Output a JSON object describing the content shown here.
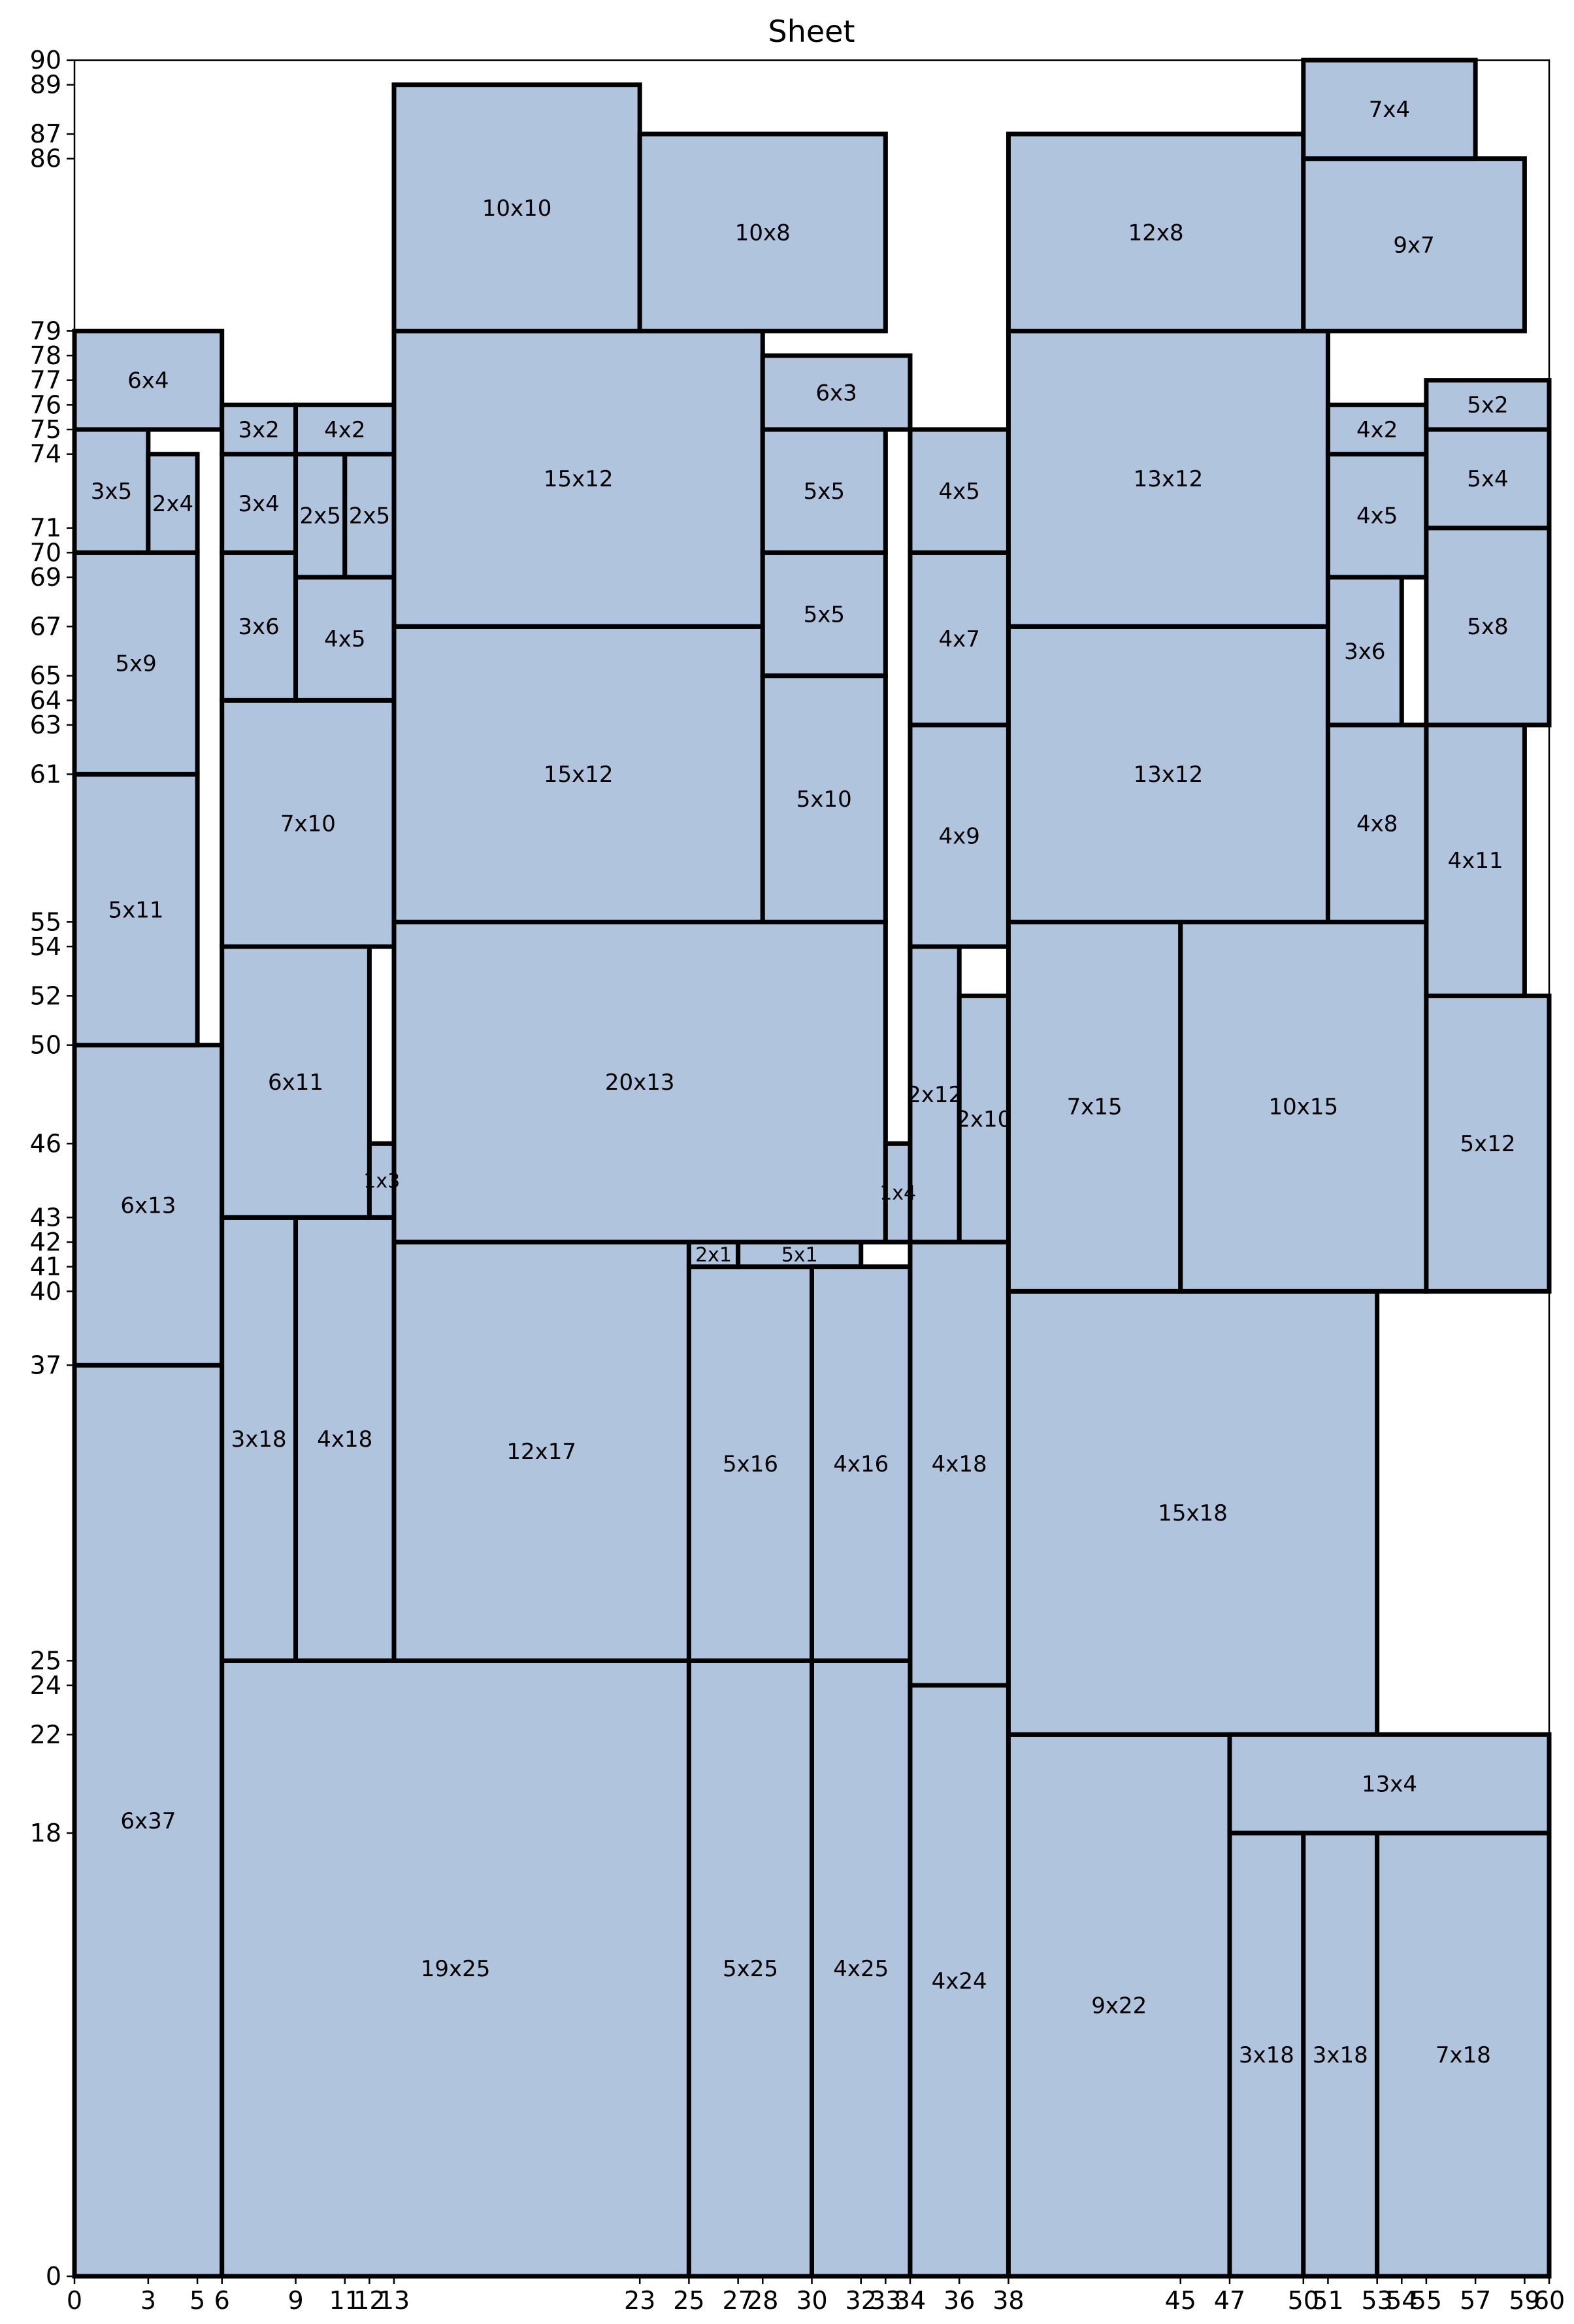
{
  "chart_data": {
    "type": "rectangles",
    "title": "Sheet",
    "xlim": [
      0,
      60
    ],
    "ylim": [
      0,
      90
    ],
    "grid": false,
    "fill_color": "#b0c4de",
    "edge_color": "#000000",
    "x_ticks": [
      "0",
      "3",
      "5",
      "6",
      "9",
      "11",
      "12",
      "13",
      "23",
      "25",
      "27",
      "28",
      "30",
      "32",
      "33",
      "34",
      "36",
      "38",
      "45",
      "47",
      "50",
      "51",
      "53",
      "54",
      "55",
      "57",
      "59",
      "60"
    ],
    "y_ticks": [
      "0",
      "18",
      "22",
      "24",
      "25",
      "37",
      "40",
      "41",
      "42",
      "43",
      "46",
      "50",
      "52",
      "54",
      "55",
      "61",
      "63",
      "64",
      "65",
      "67",
      "69",
      "70",
      "71",
      "74",
      "75",
      "76",
      "77",
      "78",
      "79",
      "86",
      "87",
      "89",
      "90"
    ],
    "rects": [
      {
        "x": 0,
        "y": 0,
        "w": 6,
        "h": 37,
        "label": "6x37"
      },
      {
        "x": 0,
        "y": 37,
        "w": 6,
        "h": 13,
        "label": "6x13"
      },
      {
        "x": 0,
        "y": 50,
        "w": 5,
        "h": 11,
        "label": "5x11"
      },
      {
        "x": 0,
        "y": 61,
        "w": 5,
        "h": 9,
        "label": "5x9"
      },
      {
        "x": 0,
        "y": 70,
        "w": 3,
        "h": 5,
        "label": "3x5"
      },
      {
        "x": 3,
        "y": 70,
        "w": 2,
        "h": 4,
        "label": "2x4"
      },
      {
        "x": 0,
        "y": 75,
        "w": 6,
        "h": 4,
        "label": "6x4"
      },
      {
        "x": 6,
        "y": 0,
        "w": 19,
        "h": 25,
        "label": "19x25"
      },
      {
        "x": 6,
        "y": 25,
        "w": 3,
        "h": 18,
        "label": "3x18"
      },
      {
        "x": 9,
        "y": 25,
        "w": 4,
        "h": 18,
        "label": "4x18"
      },
      {
        "x": 6,
        "y": 43,
        "w": 6,
        "h": 11,
        "label": "6x11"
      },
      {
        "x": 12,
        "y": 43,
        "w": 1,
        "h": 3,
        "label": "1x3"
      },
      {
        "x": 6,
        "y": 54,
        "w": 7,
        "h": 10,
        "label": "7x10"
      },
      {
        "x": 6,
        "y": 64,
        "w": 3,
        "h": 6,
        "label": "3x6"
      },
      {
        "x": 9,
        "y": 64,
        "w": 4,
        "h": 5,
        "label": "4x5"
      },
      {
        "x": 6,
        "y": 70,
        "w": 3,
        "h": 4,
        "label": "3x4"
      },
      {
        "x": 9,
        "y": 69,
        "w": 2,
        "h": 5,
        "label": "2x5"
      },
      {
        "x": 11,
        "y": 69,
        "w": 2,
        "h": 5,
        "label": "2x5"
      },
      {
        "x": 6,
        "y": 74,
        "w": 3,
        "h": 2,
        "label": "3x2"
      },
      {
        "x": 9,
        "y": 74,
        "w": 4,
        "h": 2,
        "label": "4x2"
      },
      {
        "x": 13,
        "y": 25,
        "w": 12,
        "h": 17,
        "label": "12x17"
      },
      {
        "x": 13,
        "y": 42,
        "w": 20,
        "h": 13,
        "label": "20x13"
      },
      {
        "x": 13,
        "y": 55,
        "w": 15,
        "h": 12,
        "label": "15x12"
      },
      {
        "x": 13,
        "y": 67,
        "w": 15,
        "h": 12,
        "label": "15x12"
      },
      {
        "x": 13,
        "y": 79,
        "w": 10,
        "h": 10,
        "label": "10x10"
      },
      {
        "x": 23,
        "y": 79,
        "w": 10,
        "h": 8,
        "label": "10x8"
      },
      {
        "x": 25,
        "y": 0,
        "w": 5,
        "h": 25,
        "label": "5x25"
      },
      {
        "x": 25,
        "y": 25,
        "w": 5,
        "h": 16,
        "label": "5x16"
      },
      {
        "x": 25,
        "y": 41,
        "w": 2,
        "h": 1,
        "label": "2x1"
      },
      {
        "x": 27,
        "y": 41,
        "w": 5,
        "h": 1,
        "label": "5x1"
      },
      {
        "x": 30,
        "y": 0,
        "w": 4,
        "h": 25,
        "label": "4x25"
      },
      {
        "x": 30,
        "y": 25,
        "w": 4,
        "h": 16,
        "label": "4x16"
      },
      {
        "x": 28,
        "y": 55,
        "w": 5,
        "h": 10,
        "label": "5x10"
      },
      {
        "x": 28,
        "y": 65,
        "w": 5,
        "h": 5,
        "label": "5x5"
      },
      {
        "x": 28,
        "y": 70,
        "w": 5,
        "h": 5,
        "label": "5x5"
      },
      {
        "x": 28,
        "y": 75,
        "w": 6,
        "h": 3,
        "label": "6x3"
      },
      {
        "x": 33,
        "y": 42,
        "w": 1,
        "h": 4,
        "label": "1x4"
      },
      {
        "x": 34,
        "y": 0,
        "w": 4,
        "h": 24,
        "label": "4x24"
      },
      {
        "x": 34,
        "y": 24,
        "w": 4,
        "h": 18,
        "label": "4x18"
      },
      {
        "x": 34,
        "y": 42,
        "w": 2,
        "h": 12,
        "label": "2x12"
      },
      {
        "x": 36,
        "y": 42,
        "w": 2,
        "h": 10,
        "label": "2x10"
      },
      {
        "x": 34,
        "y": 54,
        "w": 4,
        "h": 9,
        "label": "4x9"
      },
      {
        "x": 34,
        "y": 63,
        "w": 4,
        "h": 7,
        "label": "4x7"
      },
      {
        "x": 34,
        "y": 70,
        "w": 4,
        "h": 5,
        "label": "4x5"
      },
      {
        "x": 38,
        "y": 0,
        "w": 9,
        "h": 22,
        "label": "9x22"
      },
      {
        "x": 38,
        "y": 22,
        "w": 15,
        "h": 18,
        "label": "15x18"
      },
      {
        "x": 38,
        "y": 40,
        "w": 7,
        "h": 15,
        "label": "7x15"
      },
      {
        "x": 45,
        "y": 40,
        "w": 10,
        "h": 15,
        "label": "10x15"
      },
      {
        "x": 38,
        "y": 55,
        "w": 13,
        "h": 12,
        "label": "13x12"
      },
      {
        "x": 38,
        "y": 67,
        "w": 13,
        "h": 12,
        "label": "13x12"
      },
      {
        "x": 38,
        "y": 79,
        "w": 12,
        "h": 8,
        "label": "12x8"
      },
      {
        "x": 47,
        "y": 0,
        "w": 3,
        "h": 18,
        "label": "3x18"
      },
      {
        "x": 50,
        "y": 0,
        "w": 3,
        "h": 18,
        "label": "3x18"
      },
      {
        "x": 53,
        "y": 0,
        "w": 7,
        "h": 18,
        "label": "7x18"
      },
      {
        "x": 47,
        "y": 18,
        "w": 13,
        "h": 4,
        "label": "13x4"
      },
      {
        "x": 55,
        "y": 40,
        "w": 5,
        "h": 12,
        "label": "5x12"
      },
      {
        "x": 55,
        "y": 52,
        "w": 4,
        "h": 11,
        "label": "4x11"
      },
      {
        "x": 51,
        "y": 55,
        "w": 4,
        "h": 8,
        "label": "4x8"
      },
      {
        "x": 51,
        "y": 63,
        "w": 3,
        "h": 6,
        "label": "3x6"
      },
      {
        "x": 51,
        "y": 69,
        "w": 4,
        "h": 5,
        "label": "4x5"
      },
      {
        "x": 51,
        "y": 74,
        "w": 4,
        "h": 2,
        "label": "4x2"
      },
      {
        "x": 55,
        "y": 63,
        "w": 5,
        "h": 8,
        "label": "5x8"
      },
      {
        "x": 55,
        "y": 71,
        "w": 5,
        "h": 4,
        "label": "5x4"
      },
      {
        "x": 55,
        "y": 75,
        "w": 5,
        "h": 2,
        "label": "5x2"
      },
      {
        "x": 50,
        "y": 79,
        "w": 9,
        "h": 7,
        "label": "9x7"
      },
      {
        "x": 50,
        "y": 86,
        "w": 7,
        "h": 4,
        "label": "7x4"
      }
    ]
  }
}
